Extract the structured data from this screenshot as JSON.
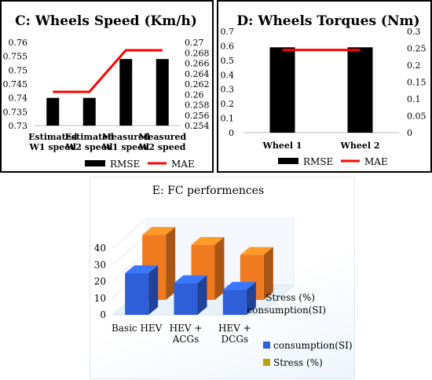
{
  "colors": {
    "rmse": "#000000",
    "mae": "#ff0000",
    "consumption": "#2e5fd8",
    "stress": "#f07a20",
    "stress_legend": "#b9a214"
  },
  "chart_data": [
    {
      "type": "bar",
      "title": "C: Wheels Speed (Km/h)",
      "categories": [
        [
          "Estimated",
          "W1 speed"
        ],
        [
          "Estimated",
          "W2 speed"
        ],
        [
          "Measured",
          "W1 speed"
        ],
        [
          "Measured",
          "W2 speed"
        ]
      ],
      "series": [
        {
          "name": "RMSE",
          "type": "bar",
          "axis": "left",
          "values": [
            0.74,
            0.74,
            0.754,
            0.754
          ]
        },
        {
          "name": "MAE",
          "type": "line",
          "axis": "right",
          "values": [
            0.2605,
            0.2605,
            0.2685,
            0.2685
          ]
        }
      ],
      "ylim_left": [
        0.73,
        0.76
      ],
      "yticks_left": [
        "0.73",
        "0.735",
        "0.74",
        "0.745",
        "0.75",
        "0.755",
        "0.76"
      ],
      "ylim_right": [
        0.254,
        0.27
      ],
      "yticks_right": [
        "0.254",
        "0.256",
        "0.258",
        "0.26",
        "0.262",
        "0.264",
        "0.266",
        "0.268",
        "0.27"
      ],
      "legend": [
        "RMSE",
        "MAE"
      ],
      "legend_position": "bottom"
    },
    {
      "type": "bar",
      "title": "D: Wheels Torques (Nm)",
      "categories": [
        "Wheel 1",
        "Wheel 2"
      ],
      "series": [
        {
          "name": "RMSE",
          "type": "bar",
          "axis": "left",
          "values": [
            0.59,
            0.59
          ]
        },
        {
          "name": "MAE",
          "type": "line",
          "axis": "right",
          "values": [
            0.245,
            0.245
          ]
        }
      ],
      "ylim_left": [
        0,
        0.7
      ],
      "yticks_left": [
        "0",
        "0.1",
        "0.2",
        "0.3",
        "0.4",
        "0.5",
        "0.6",
        "0.7"
      ],
      "ylim_right": [
        0,
        0.3
      ],
      "yticks_right": [
        "0",
        "0.05",
        "0.1",
        "0.15",
        "0.2",
        "0.25",
        "0.3"
      ],
      "legend": [
        "RMSE",
        "MAE"
      ],
      "legend_position": "bottom"
    },
    {
      "type": "bar",
      "title": "E: FC performences",
      "categories": [
        [
          "Basic HEV"
        ],
        [
          "HEV +",
          "ACGs"
        ],
        [
          "HEV +",
          "DCGs"
        ]
      ],
      "series": [
        {
          "name": "consumption(SI)",
          "values": [
            25,
            19,
            15
          ]
        },
        {
          "name": "Stress (%)",
          "values": [
            39,
            33,
            27
          ]
        }
      ],
      "depth_labels": [
        "Stress (%)",
        "consumption(SI)"
      ],
      "ylim": [
        0,
        40
      ],
      "yticks": [
        "0",
        "10",
        "20",
        "30",
        "40"
      ],
      "legend": [
        "consumption(SI)",
        "Stress (%)"
      ],
      "legend_position": "bottom-right"
    }
  ]
}
